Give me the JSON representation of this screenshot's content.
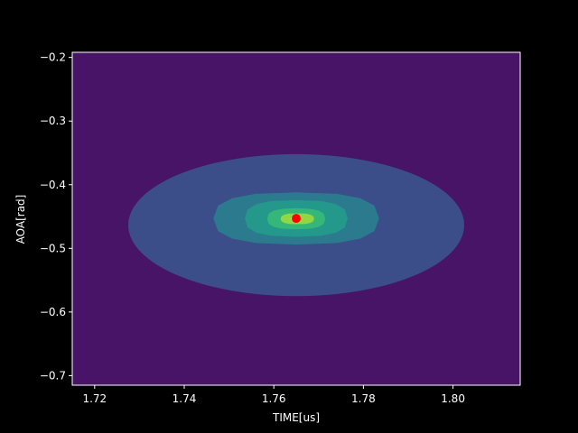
{
  "chart_data": {
    "type": "contour",
    "xlabel": "TIME[us]",
    "ylabel": "AOA[rad]",
    "xlim": [
      1.715,
      1.815
    ],
    "ylim": [
      -0.715,
      -0.192
    ],
    "x_ticks": [
      {
        "value": 1.72,
        "label": "1.72"
      },
      {
        "value": 1.74,
        "label": "1.74"
      },
      {
        "value": 1.76,
        "label": "1.76"
      },
      {
        "value": 1.78,
        "label": "1.78"
      },
      {
        "value": 1.8,
        "label": "1.80"
      }
    ],
    "y_ticks": [
      {
        "value": -0.2,
        "label": "−0.2"
      },
      {
        "value": -0.3,
        "label": "−0.3"
      },
      {
        "value": -0.4,
        "label": "−0.4"
      },
      {
        "value": -0.5,
        "label": "−0.5"
      },
      {
        "value": -0.6,
        "label": "−0.6"
      },
      {
        "value": -0.7,
        "label": "−0.7"
      }
    ],
    "colormap": "viridis",
    "background_color": "#471468",
    "contour_levels": [
      {
        "color": "#3b4e8a",
        "x": [
          1.7275,
          1.8025
        ],
        "y": [
          -0.575,
          -0.352
        ]
      },
      {
        "color": "#2c7a8e",
        "x": [
          1.7465,
          1.7835
        ],
        "y": [
          -0.494,
          -0.412
        ]
      },
      {
        "color": "#23988b",
        "x": [
          1.7535,
          1.7765
        ],
        "y": [
          -0.482,
          -0.424
        ]
      },
      {
        "color": "#35b779",
        "x": [
          1.7585,
          1.7715
        ],
        "y": [
          -0.47,
          -0.437
        ]
      },
      {
        "color": "#90d743",
        "x": [
          1.7615,
          1.769
        ],
        "y": [
          -0.462,
          -0.445
        ]
      },
      {
        "color": "#fde725",
        "x": [
          1.7638,
          1.7662
        ],
        "y": [
          -0.456,
          -0.451
        ]
      }
    ],
    "peak": {
      "x": 1.765,
      "y": -0.453,
      "color": "#ff0000"
    }
  }
}
